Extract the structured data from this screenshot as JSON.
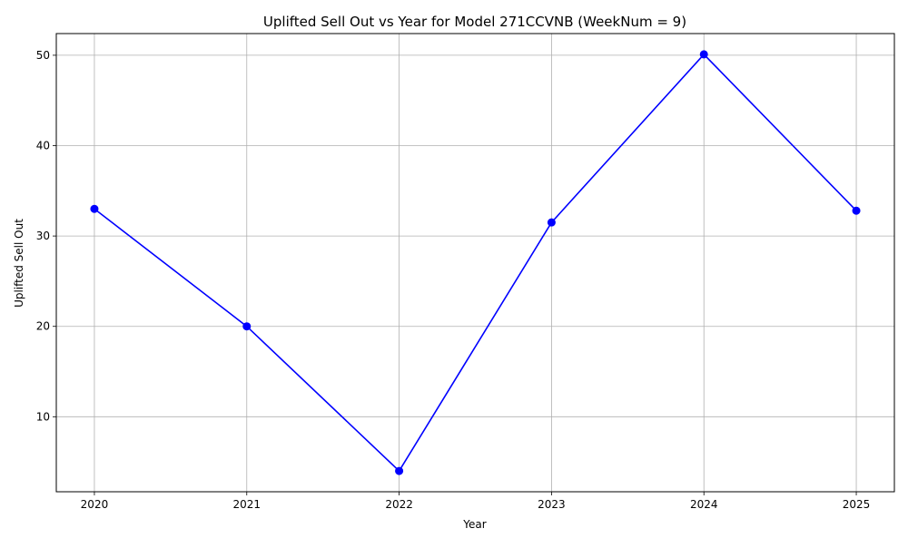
{
  "chart_data": {
    "type": "line",
    "title": "Uplifted Sell Out vs Year for Model 271CCVNB (WeekNum = 9)",
    "xlabel": "Year",
    "ylabel": "Uplifted Sell Out",
    "x": [
      2020,
      2021,
      2022,
      2023,
      2024,
      2025
    ],
    "series": [
      {
        "values": [
          33.0,
          20.0,
          4.0,
          31.5,
          50.1,
          32.8
        ]
      }
    ],
    "x_ticks": [
      "2020",
      "2021",
      "2022",
      "2023",
      "2024",
      "2025"
    ],
    "y_ticks": [
      10,
      20,
      30,
      40,
      50
    ],
    "xlim": [
      2019.75,
      2025.25
    ],
    "ylim": [
      1.7,
      52.4
    ],
    "grid": true,
    "line_color": "#0000ff",
    "marker": "circle"
  }
}
